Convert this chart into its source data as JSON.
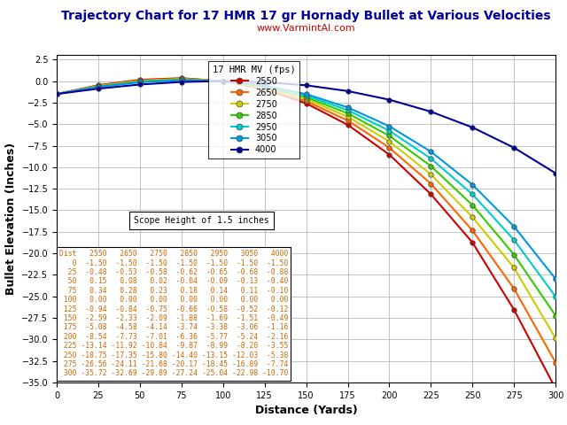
{
  "title": "Trajectory Chart for 17 HMR 17 gr Hornady Bullet at Various Velocities",
  "subtitle": "www.VarmintAl.com",
  "xlabel": "Distance (Yards)",
  "ylabel": "Bullet Elevation (Inches)",
  "xlim": [
    0,
    300
  ],
  "ylim": [
    -35,
    3
  ],
  "yticks": [
    2.5,
    0,
    -2.5,
    -5,
    -7.5,
    -10,
    -12.5,
    -15,
    -17.5,
    -20,
    -22.5,
    -25,
    -27.5,
    -30,
    -32.5,
    -35
  ],
  "xticks": [
    0,
    25,
    50,
    75,
    100,
    125,
    150,
    175,
    200,
    225,
    250,
    275,
    300
  ],
  "distances": [
    0,
    25,
    50,
    75,
    100,
    125,
    150,
    175,
    200,
    225,
    250,
    275,
    300
  ],
  "series": [
    {
      "label": "2550",
      "color": "#cc0000",
      "values": [
        -1.5,
        -0.48,
        0.15,
        0.34,
        0.0,
        -0.94,
        -2.59,
        -5.08,
        -8.54,
        -13.14,
        -18.75,
        -26.56,
        -35.72
      ]
    },
    {
      "label": "2650",
      "color": "#ff6600",
      "values": [
        -1.5,
        -0.53,
        0.08,
        0.28,
        0.0,
        -0.84,
        -2.33,
        -4.58,
        -7.73,
        -11.92,
        -17.35,
        -24.11,
        -32.69
      ]
    },
    {
      "label": "2750",
      "color": "#cccc00",
      "values": [
        -1.5,
        -0.58,
        0.02,
        0.23,
        0.0,
        -0.75,
        -2.09,
        -4.14,
        -7.01,
        -10.84,
        -15.8,
        -21.68,
        -29.89
      ]
    },
    {
      "label": "2850",
      "color": "#33cc00",
      "values": [
        -1.5,
        -0.62,
        -0.04,
        0.18,
        0.0,
        -0.66,
        -1.88,
        -3.74,
        -6.36,
        -9.87,
        -14.4,
        -20.17,
        -27.24
      ]
    },
    {
      "label": "2950",
      "color": "#00cccc",
      "values": [
        -1.5,
        -0.65,
        -0.09,
        0.14,
        0.0,
        -0.58,
        -1.69,
        -3.38,
        -5.77,
        -8.99,
        -13.15,
        -18.45,
        -25.04
      ]
    },
    {
      "label": "3050",
      "color": "#0099dd",
      "values": [
        -1.5,
        -0.68,
        -0.13,
        0.11,
        0.0,
        -0.52,
        -1.51,
        -3.06,
        -5.24,
        -8.2,
        -12.03,
        -16.89,
        -22.98
      ]
    },
    {
      "label": "4000",
      "color": "#000099",
      "values": [
        -1.5,
        -0.88,
        -0.4,
        -0.1,
        0.0,
        -0.12,
        -0.49,
        -1.16,
        -2.16,
        -3.55,
        -5.38,
        -7.74,
        -10.7
      ]
    }
  ],
  "legend_title": "17 HMR MV (fps)",
  "scope_text": "Scope Height of 1.5 inches",
  "table_rows": [
    [
      "Dist",
      "2550",
      "2650",
      "2750",
      "2850",
      "2950",
      "3050",
      "4000"
    ],
    [
      "0",
      "-1.50",
      "-1.50",
      "-1.50",
      "-1.50",
      "-1.50",
      "-1.50",
      "-1.50"
    ],
    [
      "25",
      "-0.48",
      "-0.53",
      "-0.58",
      "-0.62",
      "-0.65",
      "-0.68",
      "-0.88"
    ],
    [
      "50",
      "0.15",
      "0.08",
      "0.02",
      "-0.04",
      "-0.09",
      "-0.13",
      "-0.40"
    ],
    [
      "75",
      "0.34",
      "0.28",
      "0.23",
      "0.18",
      "0.14",
      "0.11",
      "-0.10"
    ],
    [
      "100",
      "0.00",
      "0.00",
      "0.00",
      "0.00",
      "0.00",
      "0.00",
      "0.00"
    ],
    [
      "125",
      "-0.94",
      "-0.84",
      "-0.75",
      "-0.66",
      "-0.58",
      "-0.52",
      "-0.12"
    ],
    [
      "150",
      "-2.59",
      "-2.33",
      "-2.09",
      "-1.88",
      "-1.69",
      "-1.51",
      "-0.49"
    ],
    [
      "175",
      "-5.08",
      "-4.58",
      "-4.14",
      "-3.74",
      "-3.38",
      "-3.06",
      "-1.16"
    ],
    [
      "200",
      "-8.54",
      "-7.73",
      "-7.01",
      "-6.36",
      "-5.77",
      "-5.24",
      "-2.16"
    ],
    [
      "225",
      "-13.14",
      "-11.92",
      "-10.84",
      "-9.87",
      "-8.99",
      "-8.20",
      "-3.55"
    ],
    [
      "250",
      "-18.75",
      "-17.35",
      "-15.80",
      "-14.40",
      "-13.15",
      "-12.03",
      "-5.38"
    ],
    [
      "275",
      "-26.56",
      "-24.11",
      "-21.68",
      "-20.17",
      "-18.45",
      "-16.89",
      "-7.74"
    ],
    [
      "300",
      "-35.72",
      "-32.69",
      "-29.89",
      "-27.24",
      "-25.04",
      "-22.98",
      "-10.70"
    ]
  ],
  "bg_color": "#ffffff",
  "grid_color": "#aaaaaa",
  "title_color": "#000099",
  "subtitle_color": "#cc0000",
  "table_color": "#cc6600"
}
